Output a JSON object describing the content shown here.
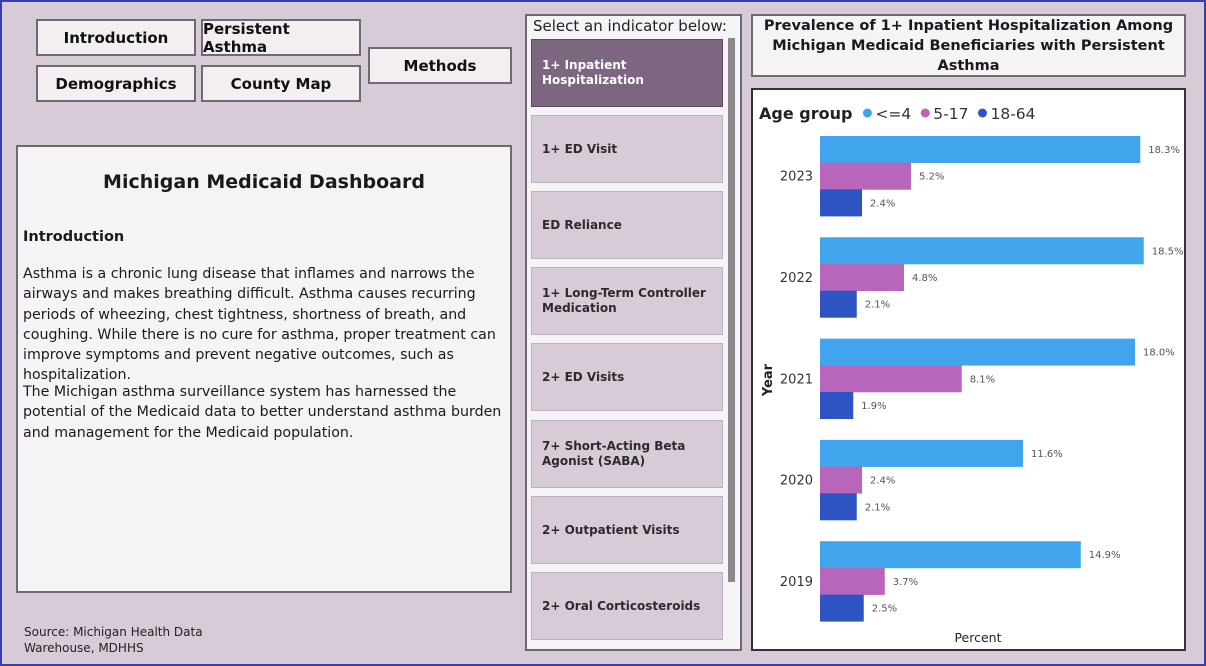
{
  "nav": {
    "introduction": "Introduction",
    "persistent_asthma": "Persistent Asthma",
    "demographics": "Demographics",
    "county_map": "County Map",
    "methods": "Methods"
  },
  "intro": {
    "title": "Michigan Medicaid Dashboard",
    "heading": "Introduction",
    "para1": "Asthma is a chronic lung disease that inflames and narrows the airways and makes breathing difficult. Asthma causes recurring periods of wheezing, chest tightness, shortness of breath, and coughing. While there is no cure for asthma, proper treatment can improve symptoms and prevent negative outcomes, such as hospitalization.",
    "para2": "The Michigan asthma surveillance system has harnessed the potential of the Medicaid data to better understand asthma burden and management for the Medicaid population."
  },
  "source": "Source: Michigan Health Data Warehouse, MDHHS",
  "slicer": {
    "title": "Select an indicator below:",
    "items": [
      "1+ Inpatient Hospitalization",
      "1+ ED Visit",
      "ED Reliance",
      "1+ Long-Term Controller Medication",
      "2+ ED Visits",
      "7+ Short-Acting Beta Agonist (SABA)",
      "2+ Outpatient Visits",
      "2+ Oral Corticosteroids"
    ],
    "selected": "1+ Inpatient Hospitalization"
  },
  "chart_title": "Prevalence of 1+ Inpatient Hospitalization Among Michigan Medicaid Beneficiaries with Persistent Asthma",
  "chart_data": {
    "type": "bar",
    "orientation": "horizontal",
    "legend_title": "Age group",
    "legend_position": "top-left",
    "categories": [
      "2023",
      "2022",
      "2021",
      "2020",
      "2019"
    ],
    "series": [
      {
        "name": "<=4",
        "color": "#41a5ee",
        "values": [
          18.3,
          18.5,
          18.0,
          11.6,
          14.9
        ]
      },
      {
        "name": "5-17",
        "color": "#b866bb",
        "values": [
          5.2,
          4.8,
          8.1,
          2.4,
          3.7
        ]
      },
      {
        "name": "18-64",
        "color": "#2e54c4",
        "values": [
          2.4,
          2.1,
          1.9,
          2.1,
          2.5
        ]
      }
    ],
    "value_suffix": "%",
    "xlabel": "Percent",
    "ylabel": "Year",
    "xlim": [
      0,
      20
    ]
  }
}
